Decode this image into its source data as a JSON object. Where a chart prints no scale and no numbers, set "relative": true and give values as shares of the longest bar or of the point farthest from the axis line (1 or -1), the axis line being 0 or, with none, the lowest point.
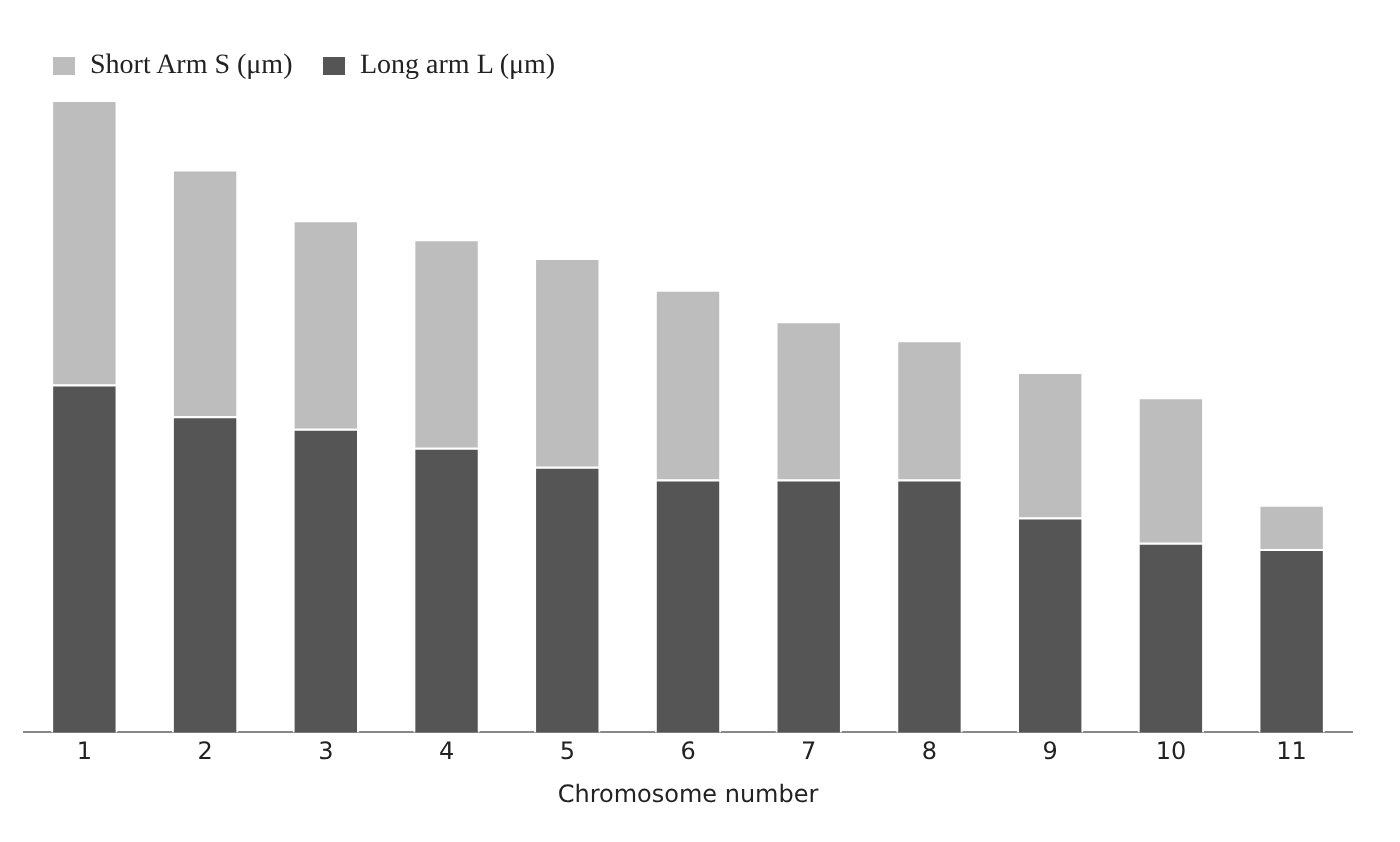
{
  "chart_data": {
    "type": "bar",
    "relative": true,
    "stacked": true,
    "xlabel": "Chromosome number",
    "legend": "top left",
    "grid": false,
    "categories": [
      "1",
      "2",
      "3",
      "4",
      "5",
      "6",
      "7",
      "8",
      "9",
      "10",
      "11"
    ],
    "series": [
      {
        "name": "Long arm L (μm)",
        "color": "#555555",
        "values": [
          0.55,
          0.5,
          0.48,
          0.45,
          0.42,
          0.4,
          0.4,
          0.4,
          0.34,
          0.3,
          0.29
        ]
      },
      {
        "name": "Short Arm S (μm)",
        "color": "#bdbdbd",
        "values": [
          0.45,
          0.39,
          0.33,
          0.33,
          0.33,
          0.3,
          0.25,
          0.22,
          0.23,
          0.23,
          0.07
        ]
      }
    ]
  }
}
